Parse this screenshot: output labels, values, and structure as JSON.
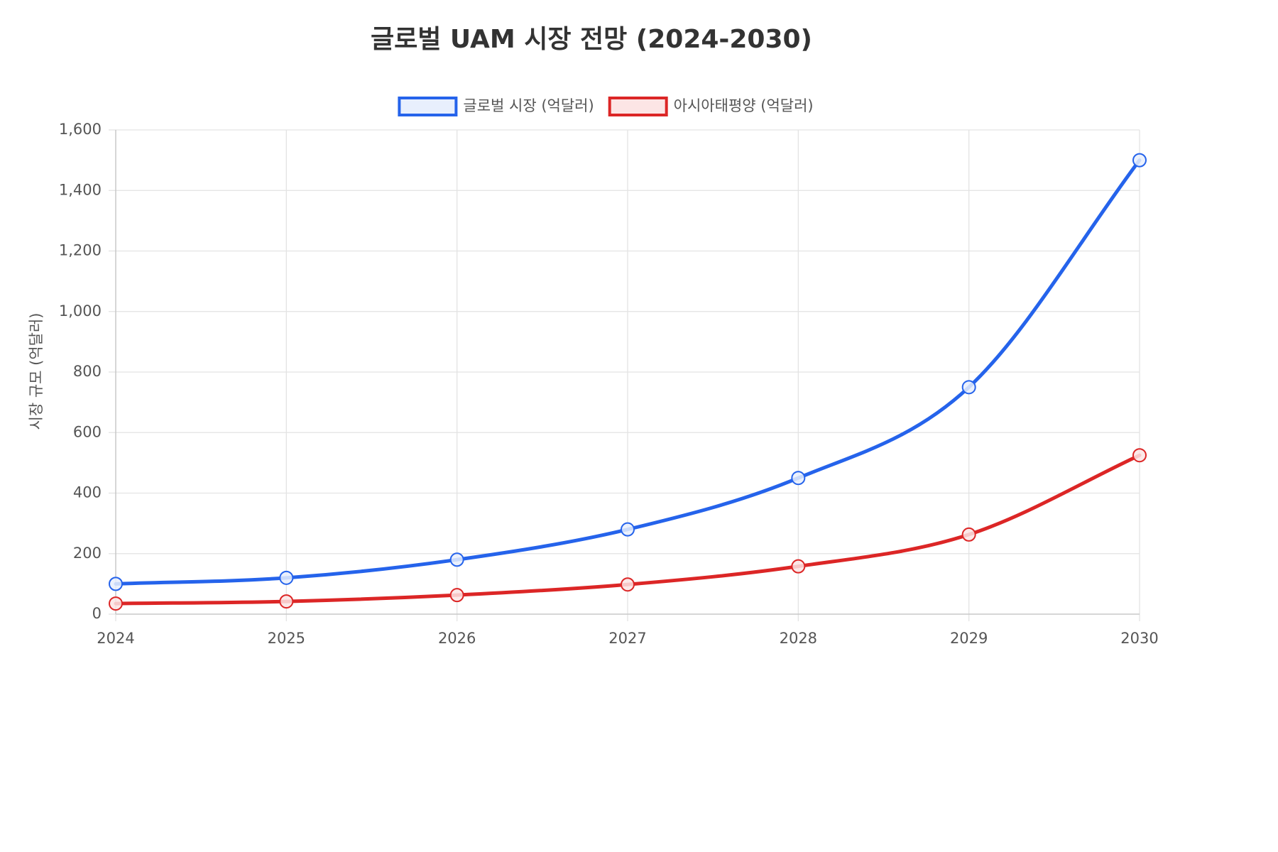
{
  "chart_data": {
    "type": "line",
    "title": "글로벌 UAM 시장 전망 (2024-2030)",
    "xlabel": "",
    "ylabel": "시장 규모 (억달러)",
    "categories": [
      "2024",
      "2025",
      "2026",
      "2027",
      "2028",
      "2029",
      "2030"
    ],
    "ylim": [
      0,
      1600
    ],
    "yticks": [
      0,
      200,
      400,
      600,
      800,
      1000,
      1200,
      1400,
      1600
    ],
    "ytick_labels": [
      "0",
      "200",
      "400",
      "600",
      "800",
      "1,000",
      "1,200",
      "1,400",
      "1,600"
    ],
    "grid": true,
    "legend_position": "top-center",
    "series": [
      {
        "name": "글로벌 시장 (억달러)",
        "values": [
          100,
          120,
          180,
          280,
          450,
          750,
          1500
        ],
        "color": "#2563eb",
        "fill": "#e8effd"
      },
      {
        "name": "아시아태평양 (억달러)",
        "values": [
          35,
          42,
          63,
          98,
          158,
          263,
          525
        ],
        "color": "#dc2626",
        "fill": "#fce5e5"
      }
    ]
  }
}
